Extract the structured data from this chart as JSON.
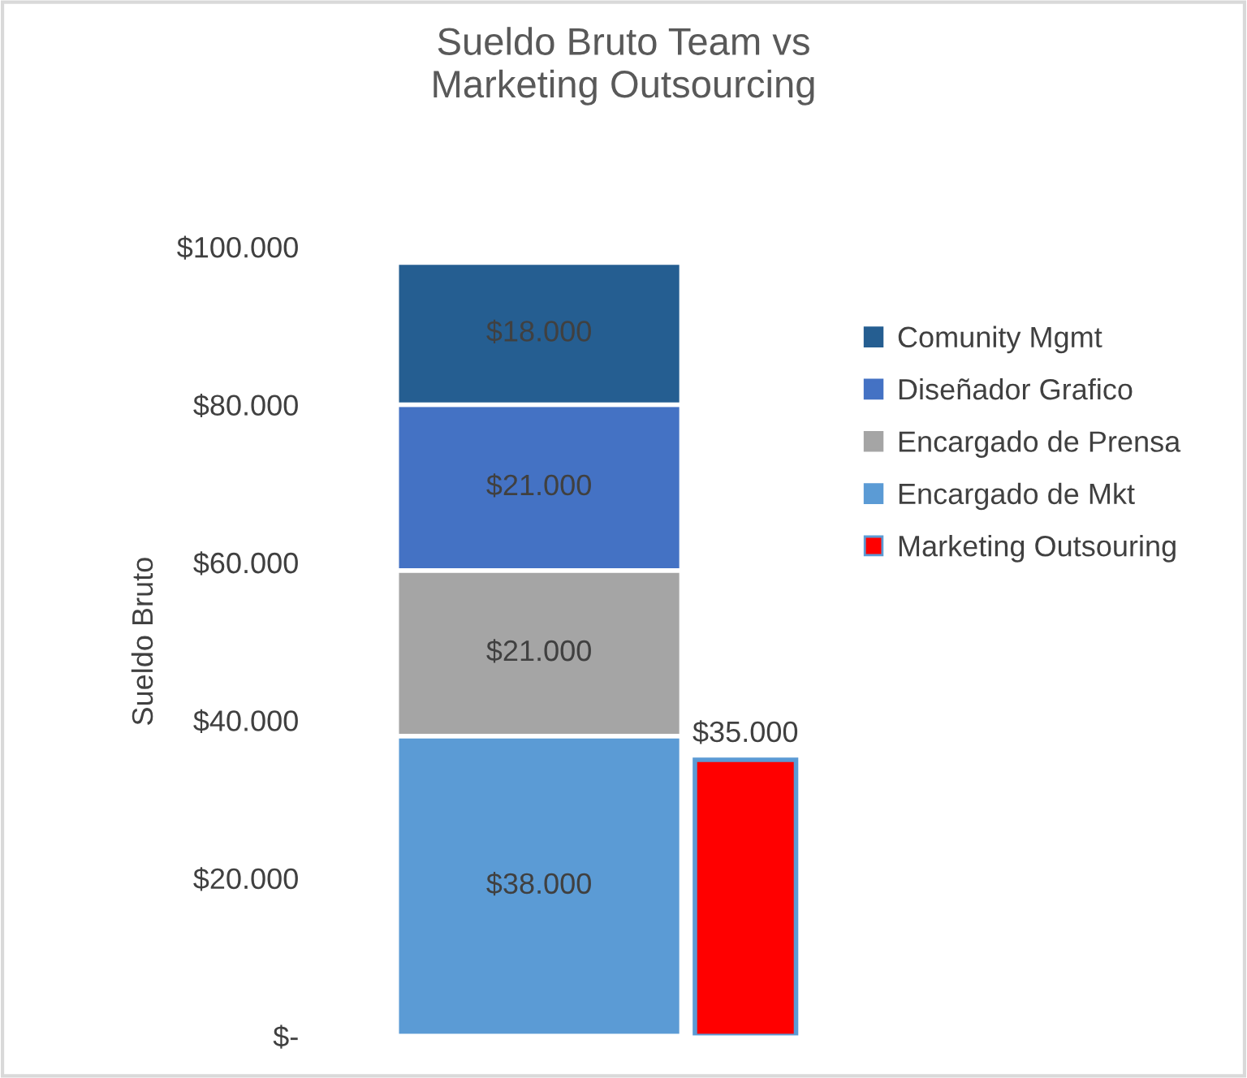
{
  "chart_data": {
    "type": "bar",
    "title": "Sueldo Bruto Team vs\nMarketing Outsourcing",
    "ylabel": "Sueldo Bruto",
    "categories": [
      null,
      null
    ],
    "stacked": true,
    "series": [
      {
        "name": "Encargado de Mkt",
        "color": "#5b9bd5",
        "values": [
          38000,
          null
        ],
        "value_labels": [
          "$38.000",
          null
        ]
      },
      {
        "name": "Encargado de Prensa",
        "color": "#a5a5a5",
        "values": [
          21000,
          null
        ],
        "value_labels": [
          "$21.000",
          null
        ]
      },
      {
        "name": "Diseñador Grafico",
        "color": "#4472c4",
        "values": [
          21000,
          null
        ],
        "value_labels": [
          "$21.000",
          null
        ]
      },
      {
        "name": "Comunity Mgmt",
        "color": "#255e91",
        "values": [
          18000,
          null
        ],
        "value_labels": [
          "$18.000",
          null
        ]
      },
      {
        "name": "Marketing Outsouring",
        "color": "#ff0000",
        "values": [
          null,
          35000
        ],
        "value_labels": [
          null,
          "$35.000"
        ]
      }
    ],
    "ylim": [
      0,
      100000
    ],
    "yticks": [
      {
        "value": 0,
        "label": "$-"
      },
      {
        "value": 20000,
        "label": "$20.000"
      },
      {
        "value": 40000,
        "label": "$40.000"
      },
      {
        "value": 60000,
        "label": "$60.000"
      },
      {
        "value": 80000,
        "label": "$80.000"
      },
      {
        "value": 100000,
        "label": "$100.000"
      }
    ],
    "grid": false,
    "legend": "right"
  }
}
